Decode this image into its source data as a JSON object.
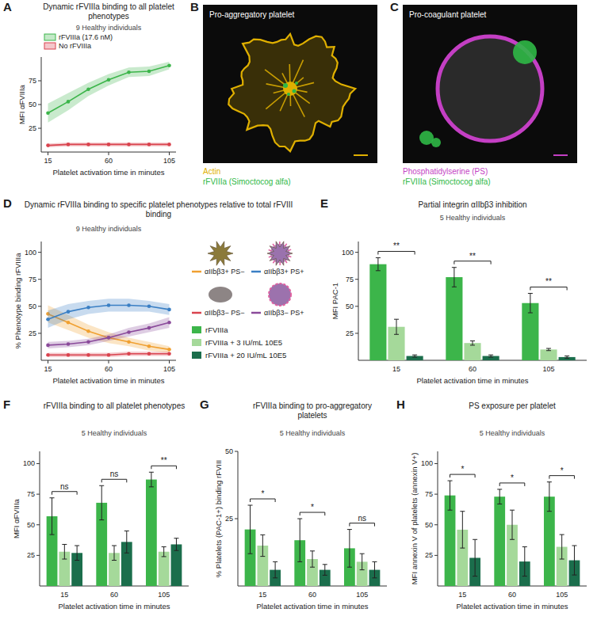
{
  "chart_data": [
    {
      "panel": "A",
      "type": "line",
      "title": "Dynamic rFVIIIa binding to all platelet phenotypes",
      "subtitle": "9 Healthy individuals",
      "x_label": "Platelet activation time in minutes",
      "y_label": "MFI αFVIIIa",
      "x": [
        15,
        30,
        45,
        60,
        75,
        90,
        105
      ],
      "xlim": [
        10,
        110
      ],
      "xticks": [
        15,
        60,
        105
      ],
      "ylim": [
        0,
        100
      ],
      "yticks": [
        25,
        50,
        75
      ],
      "legend": "top",
      "marker": "circle",
      "series": [
        {
          "name": "rFVIIIa (17.6 nM)",
          "color": "#3cb54a",
          "values": [
            41,
            53,
            66,
            76,
            84,
            85,
            91
          ],
          "errors": [
            10,
            9,
            7,
            6,
            5,
            5,
            4
          ]
        },
        {
          "name": "No rFVIIIa",
          "color": "#d9434e",
          "values": [
            7,
            8,
            8,
            8,
            8,
            8,
            8
          ],
          "errors": [
            2,
            2,
            2,
            2,
            2,
            2,
            2
          ]
        }
      ]
    },
    {
      "panel": "D",
      "type": "line",
      "title": "Dynamic rFVIIIa binding to specific platelet phenotypes relative to total rFVIII binding",
      "subtitle": "9 Healthy individuals",
      "x_label": "Platelet activation time in minutes",
      "y_label": "% Phenotype binding rFVIIIa",
      "x": [
        15,
        30,
        45,
        60,
        75,
        90,
        105
      ],
      "xlim": [
        10,
        110
      ],
      "xticks": [
        15,
        60,
        105
      ],
      "ylim": [
        0,
        110
      ],
      "yticks": [
        25,
        50,
        75,
        100
      ],
      "legend": "right",
      "marker": "circle",
      "series": [
        {
          "name": "αIIbβ3+ PS−",
          "color": "#f0a030",
          "values": [
            43,
            35,
            27,
            21,
            17,
            13,
            10
          ],
          "errors": [
            8,
            7,
            6,
            5,
            4,
            4,
            3
          ]
        },
        {
          "name": "αIIbβ3+ PS+",
          "color": "#3a7fc4",
          "values": [
            38,
            45,
            49,
            51,
            51,
            50,
            47
          ],
          "errors": [
            8,
            7,
            6,
            6,
            6,
            5,
            5
          ]
        },
        {
          "name": "αIIbβ3− PS−",
          "color": "#d9434e",
          "values": [
            5,
            5,
            5,
            5,
            6,
            6,
            6
          ],
          "errors": [
            2,
            2,
            2,
            2,
            2,
            2,
            2
          ]
        },
        {
          "name": "αIIbβ3− PS+",
          "color": "#8a4a9a",
          "values": [
            14,
            15,
            17,
            21,
            26,
            30,
            35
          ],
          "errors": [
            3,
            3,
            3,
            3,
            4,
            4,
            5
          ]
        }
      ]
    },
    {
      "panel": "E",
      "type": "bar",
      "title": "Partial integrin αIIbβ3 inhibition",
      "subtitle": "5 Healthy individuals",
      "x_label": "Platelet activation time in minutes",
      "y_label": "MFI PAC-1",
      "categories": [
        "15",
        "60",
        "105"
      ],
      "ylim": [
        0,
        110
      ],
      "yticks": [
        25,
        50,
        75,
        100
      ],
      "significance": [
        "**",
        "**",
        "**"
      ],
      "series": [
        {
          "values": [
            89,
            77,
            53
          ],
          "errors": [
            6,
            9,
            9
          ]
        },
        {
          "values": [
            31,
            16,
            10
          ],
          "errors": [
            7,
            2,
            1
          ]
        },
        {
          "values": [
            4,
            4,
            3
          ],
          "errors": [
            1,
            1,
            1
          ]
        }
      ]
    },
    {
      "panel": "F",
      "type": "bar",
      "title": "rFVIIIa binding to all platelet phenotypes",
      "subtitle": "5 Healthy individuals",
      "x_label": "Platelet activation time in minutes",
      "y_label": "MFI αFVIIIa",
      "categories": [
        "15",
        "60",
        "105"
      ],
      "ylim": [
        0,
        110
      ],
      "yticks": [
        25,
        50,
        75,
        100
      ],
      "significance": [
        "ns",
        "ns",
        "**"
      ],
      "series": [
        {
          "values": [
            57,
            68,
            87
          ],
          "errors": [
            15,
            14,
            6
          ]
        },
        {
          "values": [
            28,
            27,
            28
          ],
          "errors": [
            6,
            6,
            4
          ]
        },
        {
          "values": [
            27,
            36,
            34
          ],
          "errors": [
            6,
            9,
            5
          ]
        }
      ]
    },
    {
      "panel": "G",
      "type": "bar",
      "title": "rFVIIIa binding to pro-aggregatory platelets",
      "subtitle": "5 Healthy individuals",
      "x_label": "Platelet activation time in minutes",
      "y_label": "% Platelets (PAC-1+) binding rFVIII",
      "categories": [
        "15",
        "60",
        "105"
      ],
      "ylim": [
        0,
        50
      ],
      "yticks": [
        25,
        50
      ],
      "significance": [
        "*",
        "*",
        "ns"
      ],
      "series": [
        {
          "values": [
            21,
            17,
            14
          ],
          "errors": [
            9,
            8,
            7
          ]
        },
        {
          "values": [
            15,
            10,
            9
          ],
          "errors": [
            4,
            3,
            3
          ]
        },
        {
          "values": [
            6,
            6,
            6
          ],
          "errors": [
            3,
            2,
            3
          ]
        }
      ]
    },
    {
      "panel": "H",
      "type": "bar",
      "title": "PS exposure per platelet",
      "subtitle": "5 Healthy individuals",
      "x_label": "Platelet activation time in minutes",
      "y_label": "MFI annexin V of platelets (annexin V+)",
      "categories": [
        "15",
        "60",
        "105"
      ],
      "ylim": [
        0,
        110
      ],
      "yticks": [
        25,
        50,
        75,
        100
      ],
      "significance": [
        "*",
        "*",
        "*"
      ],
      "series": [
        {
          "values": [
            74,
            73,
            73
          ],
          "errors": [
            12,
            6,
            12
          ]
        },
        {
          "values": [
            46,
            50,
            32
          ],
          "errors": [
            15,
            12,
            10
          ]
        },
        {
          "values": [
            23,
            20,
            21
          ],
          "errors": [
            15,
            12,
            12
          ]
        }
      ]
    }
  ],
  "bar_legend": {
    "items": [
      {
        "name": "rFVIIIa",
        "color": "#3cb54a"
      },
      {
        "name": "rFVIIIa + 3 IU/mL 10E5",
        "color": "#a5d99a"
      },
      {
        "name": "rFVIIIa + 20 IU/mL 10E5",
        "color": "#1b6e4c"
      }
    ]
  },
  "images": [
    {
      "panel": "B",
      "label": "Pro-aggregatory platelet",
      "legend": [
        {
          "name": "Actin",
          "color": "#e0b000"
        },
        {
          "name": "rFVIIIa (Simoctocog alfa)",
          "color": "#2fb846"
        }
      ]
    },
    {
      "panel": "C",
      "label": "Pro-coagulant platelet",
      "legend": [
        {
          "name": "Phosphatidylserine (PS)",
          "color": "#c43fc4"
        },
        {
          "name": "rFVIIIa (Simoctocog alfa)",
          "color": "#2fb846"
        }
      ]
    }
  ]
}
